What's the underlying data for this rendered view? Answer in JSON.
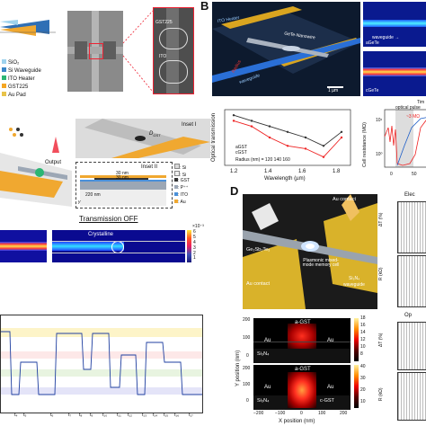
{
  "panels": {
    "B": "B",
    "D": "D"
  },
  "panelA_legend": {
    "items": [
      {
        "label": "SiO₂",
        "color": "#9fd3ee"
      },
      {
        "label": "Si Waveguide",
        "color": "#3a86c8"
      },
      {
        "label": "ITO Heater",
        "color": "#2bb673"
      },
      {
        "label": "GST225",
        "color": "#f5a623"
      },
      {
        "label": "Au Pad",
        "color": "#e8c34a"
      }
    ]
  },
  "panelA_sem": {
    "labels": [
      "GST225",
      "ITO"
    ]
  },
  "panelC": {
    "output_label": "Output",
    "inset1_title": "Inset I",
    "inset1_dim": "D",
    "inset1_dim_sub": "GST",
    "inset2_title": "Inset II",
    "dim_30a": "30 nm",
    "dim_30b": "30 nm",
    "dim_220": "220 nm",
    "legend": [
      {
        "label": ": Si",
        "color": "#d9d9d9"
      },
      {
        "label": ": Si",
        "color": "#eeeeee"
      },
      {
        "label": ": GST",
        "color": "#333333"
      },
      {
        "label": ": P⁺⁺",
        "color": "#9ca7b5"
      },
      {
        "label": ": ITO",
        "color": "#4a90d9"
      },
      {
        "label": ": Au",
        "color": "#f0a830"
      }
    ],
    "axis_x": "x",
    "axis_y": "y",
    "title": "Transmission OFF",
    "crystalline": "Crystalline",
    "colorbar_ticks": [
      "6",
      "5",
      "4",
      "3",
      "2",
      "1",
      "0"
    ],
    "colorbar_exp": "×10⁻³"
  },
  "panelC_trace": {
    "ticks": [
      "t₄",
      "t₅",
      "t₆",
      "t₇",
      "t₈",
      "t₉",
      "t₁₀",
      "t₁₁",
      "t₁₂",
      "t₁₃",
      "t₁₄",
      "t₁₅",
      "t₁₆",
      "t₁₇"
    ]
  },
  "panelB": {
    "top_labels": {
      "gst": "GeTe-Nanowire",
      "heater": "ITO Heater",
      "radius": "Radius",
      "waveguide": "waveguide",
      "scale": "1 µm"
    },
    "mode_labels": [
      "waveguide →",
      "aGeTe",
      "cGeTe"
    ],
    "time_label": "Tim"
  },
  "panelB_transmission": {
    "ylabel": "Optical transmission",
    "xlabel": "Wavelength (µm)",
    "legend_lines": [
      "aGST",
      "cGST"
    ],
    "radius_label": "Radius (nm) = 120 140 160",
    "xticks": [
      "1.2",
      "1.4",
      "1.6",
      "1.8"
    ]
  },
  "chart_data": [
    {
      "type": "line",
      "title": "",
      "xlabel": "Wavelength (µm)",
      "ylabel": "Optical transmission",
      "xlim": [
        1.15,
        1.85
      ],
      "series": [
        {
          "name": "aGST",
          "x": [
            1.2,
            1.3,
            1.4,
            1.5,
            1.6,
            1.7,
            1.8
          ],
          "y": [
            0.9,
            0.8,
            0.7,
            0.6,
            0.5,
            0.35,
            0.6
          ]
        },
        {
          "name": "cGST",
          "x": [
            1.2,
            1.3,
            1.4,
            1.5,
            1.6,
            1.7,
            1.8
          ],
          "y": [
            0.8,
            0.7,
            0.5,
            0.35,
            0.3,
            0.15,
            0.5
          ]
        }
      ]
    },
    {
      "type": "line",
      "xlabel": "",
      "ylabel": "Cell resistance (MΩ)",
      "yticks": [
        "10¹",
        "10⁰"
      ],
      "xticks": [
        "0",
        "50"
      ],
      "annotations": [
        "optical pulse",
        "~3 MΩ"
      ],
      "series": []
    }
  ],
  "panelB_resistance": {
    "ylabel": "Cell resistance (MΩ)",
    "pulse_label": "optical pulse",
    "value_label": "~3 MΩ",
    "yticks": [
      "10¹",
      "10⁰"
    ],
    "xticks": [
      "0",
      "50"
    ]
  },
  "panelD": {
    "au_contact_left": "Au contact",
    "au_contact_right": "Au contact",
    "material": "Ge₂Sb₂Te₅",
    "plasmonic": "Plasmonic mixed-mode memory cell",
    "sin": "Si₃N₄",
    "waveguide": "waveguide",
    "top_sim": {
      "gst": "a-GST",
      "au_left": "Au",
      "au_right": "Au",
      "sin": "Si₃N₄"
    },
    "bot_sim": {
      "gst": "a-GST",
      "au_left": "Au",
      "au_right": "Au",
      "sin": "Si₃N₄",
      "cgst": "c-GST"
    },
    "ylabel": "Y position (nm)",
    "xlabel": "X position (nm)",
    "xticks": [
      "−200",
      "−100",
      "0",
      "100",
      "200"
    ],
    "yticks_top": [
      "200",
      "100",
      "0"
    ],
    "yticks_bot": [
      "200",
      "100",
      "0"
    ],
    "cbar_top": [
      "18",
      "16",
      "14",
      "12",
      "10",
      "8"
    ],
    "cbar_bot": [
      "40",
      "30",
      "20",
      "10"
    ],
    "right_titles": [
      "Elec",
      "Op"
    ],
    "right_ylabels": [
      "ΔT (%)",
      "R (kΩ)"
    ]
  }
}
